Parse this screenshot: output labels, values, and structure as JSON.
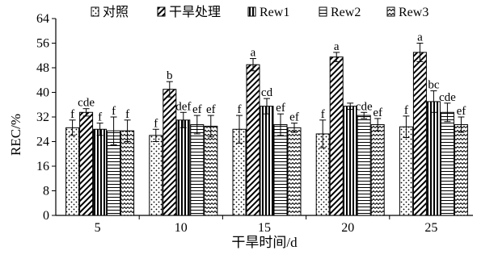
{
  "chart_data": {
    "type": "bar",
    "xlabel": "干旱时间/d",
    "ylabel": "REC/%",
    "ylim": [
      0,
      64
    ],
    "yticks": [
      0,
      8,
      16,
      24,
      32,
      40,
      48,
      56,
      64
    ],
    "categories": [
      "5",
      "10",
      "15",
      "20",
      "25"
    ],
    "legend_position": "top",
    "series": [
      {
        "name": "对照",
        "pattern": "dots",
        "values": [
          28.5,
          26.0,
          28.0,
          26.5,
          28.8
        ],
        "errors": [
          2.5,
          2.0,
          4.5,
          4.5,
          3.5
        ],
        "labels": [
          "f",
          "f",
          "f",
          "f",
          "f"
        ]
      },
      {
        "name": "干旱处理",
        "pattern": "diagonal",
        "values": [
          33.5,
          41.0,
          49.0,
          51.5,
          53.0
        ],
        "errors": [
          1.2,
          2.5,
          2.0,
          1.5,
          3.0
        ],
        "labels": [
          "cde",
          "b",
          "a",
          "a",
          "a"
        ]
      },
      {
        "name": "Rew1",
        "pattern": "vertical",
        "values": [
          28.0,
          31.0,
          35.5,
          35.5,
          37.0
        ],
        "errors": [
          2.0,
          2.5,
          2.5,
          1.0,
          3.5
        ],
        "labels": [
          "f",
          "def",
          "cd",
          "",
          "bc"
        ]
      },
      {
        "name": "Rew2",
        "pattern": "horizontal",
        "values": [
          27.5,
          29.5,
          29.5,
          32.5,
          33.5
        ],
        "errors": [
          4.5,
          3.0,
          3.5,
          1.0,
          3.0
        ],
        "labels": [
          "f",
          "ef",
          "ef",
          "cde",
          "cde"
        ]
      },
      {
        "name": "Rew3",
        "pattern": "zigzag",
        "values": [
          27.5,
          29.0,
          28.5,
          29.5,
          29.5
        ],
        "errors": [
          3.5,
          3.5,
          1.5,
          2.0,
          2.5
        ],
        "labels": [
          "f",
          "ef",
          "ef",
          "ef",
          "ef"
        ]
      }
    ]
  }
}
